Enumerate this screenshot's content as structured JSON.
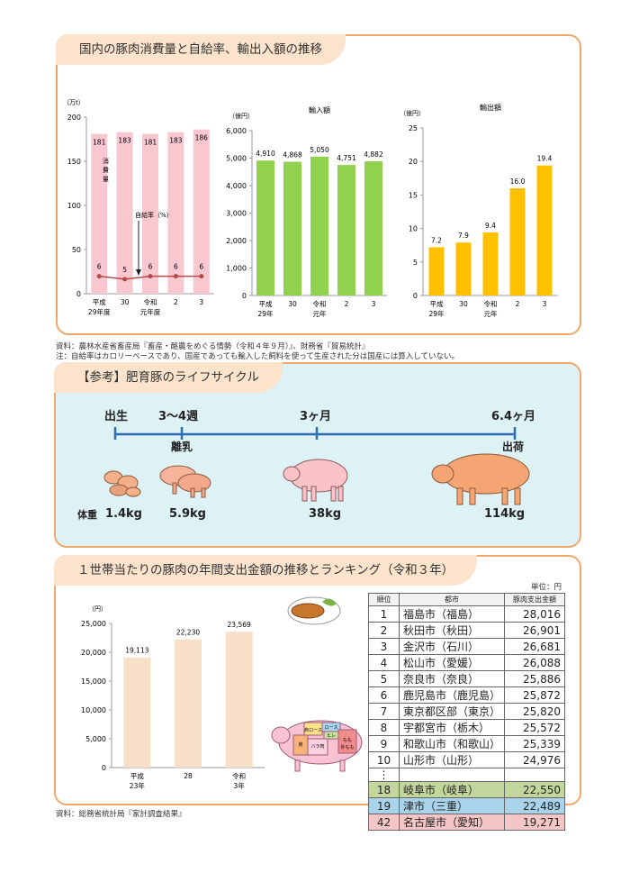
{
  "section1": {
    "title": "国内の豚肉消費量と自給率、輸出入額の推移",
    "source": "資料：農林水産省畜産局『畜産・酪農をめぐる情勢（令和４年９月）』、財務省『貿易統計』",
    "footnote": "注：自給率はカロリーベースであり、国産であっても輸入した飼料を使って生産された分は国産には算入していない。"
  },
  "chart_data": [
    {
      "type": "bar",
      "title": "",
      "ylabel": "（万t）",
      "categories": [
        "平成29年度",
        "30",
        "令和元年度",
        "2",
        "3"
      ],
      "values": [
        181,
        183,
        181,
        183,
        186
      ],
      "series_label": "消費量",
      "ylim": [
        0,
        200
      ],
      "yticks": [
        0,
        50,
        100,
        150,
        200
      ],
      "line_series": {
        "name": "自給率（%）",
        "values": [
          6,
          5,
          6,
          6,
          6
        ]
      },
      "color": "#f9c7cf"
    },
    {
      "type": "bar",
      "title": "輸入額",
      "ylabel": "（億円）",
      "categories": [
        "平成29年",
        "30",
        "令和元年",
        "2",
        "3"
      ],
      "values": [
        4910,
        4868,
        5050,
        4751,
        4882
      ],
      "value_labels": [
        "4,910",
        "4,868",
        "5,050",
        "4,751",
        "4,882"
      ],
      "ylim": [
        0,
        6000
      ],
      "yticks": [
        "0",
        "1,000",
        "2,000",
        "3,000",
        "4,000",
        "5,000",
        "6,000"
      ],
      "color": "#92d050"
    },
    {
      "type": "bar",
      "title": "輸出額",
      "ylabel": "（億円）",
      "categories": [
        "平成29年",
        "30",
        "令和元年",
        "2",
        "3"
      ],
      "values": [
        7.2,
        7.9,
        9.4,
        16.0,
        19.4
      ],
      "value_labels": [
        "7.2",
        "7.9",
        "9.4",
        "16.0",
        "19.4"
      ],
      "ylim": [
        0,
        25
      ],
      "yticks": [
        0,
        5,
        10,
        15,
        20,
        25
      ],
      "color": "#ffc000"
    },
    {
      "type": "bar",
      "title": "",
      "ylabel": "（円）",
      "categories": [
        "平成23年",
        "28",
        "令和3年"
      ],
      "values": [
        19113,
        22230,
        23569
      ],
      "value_labels": [
        "19,113",
        "22,230",
        "23,569"
      ],
      "ylim": [
        0,
        25000
      ],
      "yticks": [
        "0",
        "5,000",
        "10,000",
        "15,000",
        "20,000",
        "25,000"
      ],
      "color": "#f8dfc8"
    }
  ],
  "section2": {
    "title": "【参考】肥育豚のライフサイクル",
    "stages": [
      "出生",
      "3～4週",
      "3ヶ月",
      "6.4ヶ月"
    ],
    "events": [
      "離乳",
      "出荷"
    ],
    "weight_label": "体重",
    "weights": [
      "1.4kg",
      "5.9kg",
      "38kg",
      "114kg"
    ]
  },
  "section3": {
    "title": "１世帯当たりの豚肉の年間支出金額の推移とランキング（令和３年）",
    "unit": "単位：円",
    "source": "資料：総務省統計局『家計調査結果』",
    "headers": [
      "順位",
      "都市",
      "豚肉支出金額"
    ],
    "ranking": [
      {
        "rank": "1",
        "city": "福島市（福島）",
        "amount": "28,016"
      },
      {
        "rank": "2",
        "city": "秋田市（秋田）",
        "amount": "26,901"
      },
      {
        "rank": "3",
        "city": "金沢市（石川）",
        "amount": "26,681"
      },
      {
        "rank": "4",
        "city": "松山市（愛媛）",
        "amount": "26,088"
      },
      {
        "rank": "5",
        "city": "奈良市（奈良）",
        "amount": "25,886"
      },
      {
        "rank": "6",
        "city": "鹿児島市（鹿児島）",
        "amount": "25,872"
      },
      {
        "rank": "7",
        "city": "東京都区部（東京）",
        "amount": "25,820"
      },
      {
        "rank": "8",
        "city": "宇都宮市（栃木）",
        "amount": "25,572"
      },
      {
        "rank": "9",
        "city": "和歌山市（和歌山）",
        "amount": "25,339"
      },
      {
        "rank": "10",
        "city": "山形市（山形）",
        "amount": "24,976"
      }
    ],
    "ellipsis": "⋮",
    "highlights": [
      {
        "rank": "18",
        "city": "岐阜市（岐阜）",
        "amount": "22,550"
      },
      {
        "rank": "19",
        "city": "津市（三重）",
        "amount": "22,489"
      },
      {
        "rank": "42",
        "city": "名古屋市（愛知）",
        "amount": "19,271"
      }
    ],
    "pig_cuts": [
      "肩ロース",
      "ロース",
      "ヒレ",
      "もも",
      "肩",
      "バラ肉",
      "外もも"
    ]
  }
}
